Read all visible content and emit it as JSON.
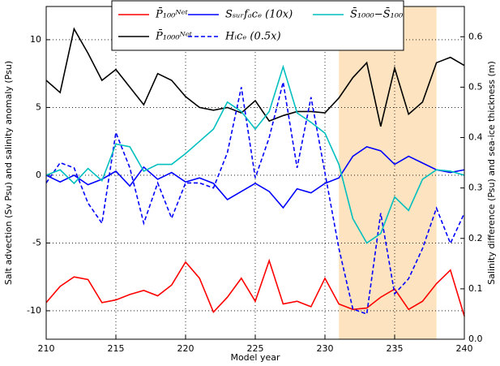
{
  "chart_data": {
    "type": "line",
    "xlabel": "Model year",
    "ylabel": "Salt advection (Sv Psu) and salinity anomaly (Psu)",
    "y2label": "Salinity difference (Psu) and sea-ice thickness (m)",
    "x": [
      210,
      211,
      212,
      213,
      214,
      215,
      216,
      217,
      218,
      219,
      220,
      221,
      222,
      223,
      224,
      225,
      226,
      227,
      228,
      229,
      230,
      231,
      232,
      233,
      234,
      235,
      236,
      237,
      238,
      239,
      240
    ],
    "xlim": [
      210,
      240
    ],
    "xticks": [
      210,
      215,
      220,
      225,
      230,
      235,
      240
    ],
    "ylim": [
      -12.1,
      12.45
    ],
    "yticks": [
      -10,
      -5,
      0,
      5,
      10
    ],
    "y2lim": [
      0,
      0.66
    ],
    "y2ticks": [
      {
        "value": 0,
        "label": "0.0"
      },
      0.1,
      0.2,
      0.3,
      0.4,
      0.5,
      0.6
    ],
    "grid": true,
    "highlight_span": [
      231,
      238
    ],
    "highlight_color": "#fde3bf",
    "series": [
      {
        "name": "P̄₁₀₀ᴺᵉᵗ",
        "color": "#ff0000",
        "values": [
          -9.4,
          -8.2,
          -7.5,
          -7.7,
          -9.4,
          -9.2,
          -8.8,
          -8.5,
          -8.9,
          -8.1,
          -6.4,
          -7.6,
          -10.1,
          -9.0,
          -7.6,
          -9.3,
          -6.3,
          -9.5,
          -9.3,
          -9.7,
          -7.6,
          -9.5,
          -9.9,
          -9.8,
          -9.0,
          -8.4,
          -9.9,
          -9.3,
          -8.0,
          -7.0,
          -10.4
        ]
      },
      {
        "name": "P̄₁₀₀₀ᴺᵉᵗ",
        "color": "#000000",
        "values": [
          7.0,
          6.1,
          10.8,
          9.0,
          7.0,
          7.8,
          6.5,
          5.2,
          7.5,
          7.0,
          5.8,
          5.0,
          4.8,
          5.0,
          4.6,
          5.5,
          4.0,
          4.4,
          4.7,
          4.7,
          4.6,
          5.7,
          7.2,
          8.3,
          3.6,
          7.9,
          4.5,
          5.4,
          8.3,
          8.7,
          8.1
        ]
      },
      {
        "name": "Sₛᵤᵣfₐcₑ (10x)",
        "color": "#0000ff",
        "values": [
          0.0,
          -0.5,
          0.0,
          -0.7,
          -0.3,
          0.3,
          -0.8,
          0.6,
          -0.3,
          0.2,
          -0.5,
          -0.2,
          -0.6,
          -1.8,
          -1.2,
          -0.6,
          -1.2,
          -2.4,
          -1.0,
          -1.3,
          -0.6,
          -0.2,
          1.4,
          2.1,
          1.8,
          0.8,
          1.4,
          0.9,
          0.4,
          0.2,
          0.4
        ]
      },
      {
        "name": "Hᵢcₑ (0.5x)",
        "color": "#0000ff",
        "dashed": true,
        "axis": "y2",
        "values": [
          0.31,
          0.35,
          0.34,
          0.27,
          0.23,
          0.41,
          0.34,
          0.23,
          0.31,
          0.24,
          0.31,
          0.31,
          0.3,
          0.37,
          0.5,
          0.32,
          0.4,
          0.51,
          0.34,
          0.48,
          0.33,
          0.18,
          0.06,
          0.05,
          0.25,
          0.09,
          0.12,
          0.18,
          0.26,
          0.19,
          0.25
        ]
      },
      {
        "name": "S̄₁₀₀₀−S̄₁₀₀",
        "color": "#00bfbf",
        "values": [
          0.0,
          0.4,
          -0.6,
          0.5,
          -0.4,
          2.3,
          2.1,
          0.3,
          0.8,
          0.8,
          1.6,
          2.5,
          3.4,
          5.4,
          4.7,
          3.4,
          4.7,
          8.0,
          4.6,
          3.9,
          3.1,
          0.8,
          -3.2,
          -5.0,
          -4.3,
          -1.6,
          -2.6,
          -0.3,
          0.4,
          0.3,
          0.0
        ]
      }
    ]
  }
}
